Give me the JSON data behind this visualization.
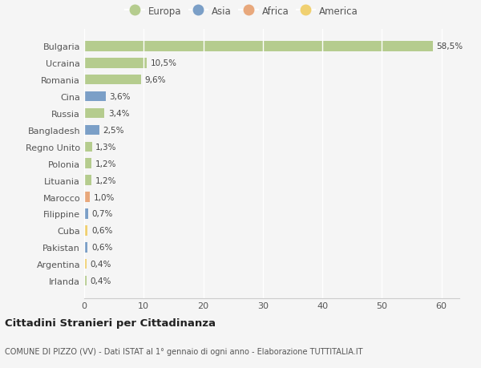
{
  "countries": [
    "Bulgaria",
    "Ucraina",
    "Romania",
    "Cina",
    "Russia",
    "Bangladesh",
    "Regno Unito",
    "Polonia",
    "Lituania",
    "Marocco",
    "Filippine",
    "Cuba",
    "Pakistan",
    "Argentina",
    "Irlanda"
  ],
  "values": [
    58.5,
    10.5,
    9.6,
    3.6,
    3.4,
    2.5,
    1.3,
    1.2,
    1.2,
    1.0,
    0.7,
    0.6,
    0.6,
    0.4,
    0.4
  ],
  "labels": [
    "58,5%",
    "10,5%",
    "9,6%",
    "3,6%",
    "3,4%",
    "2,5%",
    "1,3%",
    "1,2%",
    "1,2%",
    "1,0%",
    "0,7%",
    "0,6%",
    "0,6%",
    "0,4%",
    "0,4%"
  ],
  "continents": [
    "Europa",
    "Europa",
    "Europa",
    "Asia",
    "Europa",
    "Asia",
    "Europa",
    "Europa",
    "Europa",
    "Africa",
    "Asia",
    "America",
    "Asia",
    "America",
    "Europa"
  ],
  "colors": {
    "Europa": "#b5cc8e",
    "Asia": "#7b9fc7",
    "Africa": "#e8a87c",
    "America": "#f0d070"
  },
  "legend_order": [
    "Europa",
    "Asia",
    "Africa",
    "America"
  ],
  "title": "Cittadini Stranieri per Cittadinanza",
  "subtitle": "COMUNE DI PIZZO (VV) - Dati ISTAT al 1° gennaio di ogni anno - Elaborazione TUTTITALIA.IT",
  "xlim": [
    0,
    63
  ],
  "xticks": [
    0,
    10,
    20,
    30,
    40,
    50,
    60
  ],
  "background_color": "#f5f5f5",
  "grid_color": "#ffffff",
  "bar_height": 0.6
}
